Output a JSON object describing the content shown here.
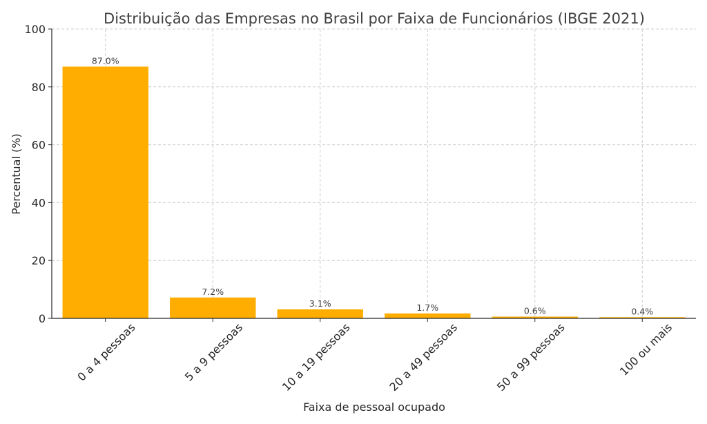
{
  "chart_data": {
    "type": "bar",
    "title": "Distribuição das Empresas no Brasil por Faixa de Funcionários (IBGE 2021)",
    "xlabel": "Faixa de pessoal ocupado",
    "ylabel": "Percentual (%)",
    "categories": [
      "0 a 4 pessoas",
      "5 a 9 pessoas",
      "10 a 19 pessoas",
      "20 a 49 pessoas",
      "50 a 99 pessoas",
      "100 ou mais"
    ],
    "values": [
      87.0,
      7.2,
      3.1,
      1.7,
      0.6,
      0.4
    ],
    "value_labels": [
      "87.0%",
      "7.2%",
      "3.1%",
      "1.7%",
      "0.6%",
      "0.4%"
    ],
    "ylim": [
      0,
      100
    ],
    "yticks": [
      0,
      20,
      40,
      60,
      80,
      100
    ],
    "grid": true,
    "bar_color": "#ffad00"
  }
}
